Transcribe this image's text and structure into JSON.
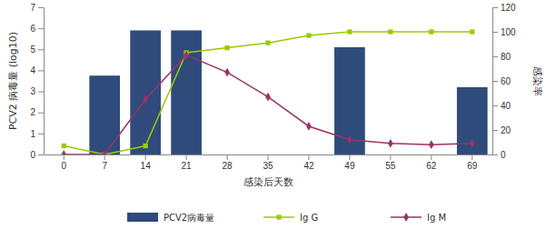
{
  "chart_data": {
    "type": "bar",
    "x_label": "感染后天数",
    "y_label": "PCV2 病毒量 (log10)",
    "y2_label": "感染率",
    "categories": [
      "0",
      "7",
      "14",
      "21",
      "28",
      "35",
      "42",
      "49",
      "55",
      "62",
      "69"
    ],
    "ylim": [
      0,
      7
    ],
    "yticks": [
      0,
      1,
      2,
      3,
      4,
      5,
      6,
      7
    ],
    "y2lim": [
      0,
      120
    ],
    "y2ticks": [
      0,
      20,
      40,
      60,
      80,
      100,
      120
    ],
    "legend": "bottom",
    "series": [
      {
        "name": "PCV2病毒量",
        "type": "bar",
        "color": "#2f4b7c",
        "values": [
          null,
          3.75,
          5.9,
          5.9,
          null,
          null,
          null,
          5.1,
          null,
          null,
          3.2
        ]
      },
      {
        "name": "Ig G",
        "type": "line",
        "axis": "y2",
        "color": "#99cc00",
        "marker": "square",
        "values": [
          7,
          0,
          7,
          83,
          87,
          91,
          97,
          100,
          100,
          100,
          100
        ]
      },
      {
        "name": "Ig M",
        "type": "line",
        "axis": "y2",
        "color": "#993366",
        "marker": "diamond",
        "values": [
          0,
          0,
          45,
          81,
          67,
          47,
          23,
          12,
          9,
          8,
          9
        ]
      }
    ]
  }
}
